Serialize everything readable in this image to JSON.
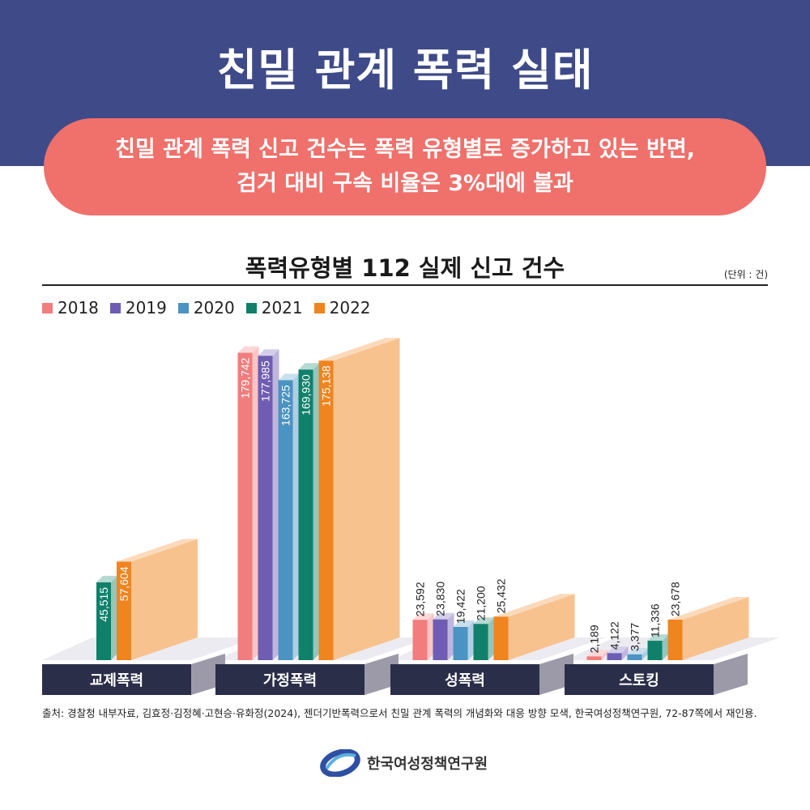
{
  "header": {
    "title": "친밀 관계 폭력 실태",
    "subtitle_line1": "친밀 관계 폭력 신고 건수는 폭력 유형별로 증가하고 있는 반면,",
    "subtitle_line2": "검거 대비 구속 비율은 3%대에 불과"
  },
  "colors": {
    "header_bg": "#3f4a88",
    "pill_bg": "#f0706b",
    "category_label_bg": "#2b2e48"
  },
  "chart_data": {
    "type": "bar",
    "title": "폭력유형별 112 실제 신고 건수",
    "unit_label": "(단위 : 건)",
    "categories": [
      "교제폭력",
      "가정폭력",
      "성폭력",
      "스토킹"
    ],
    "ylim": [
      0,
      180000
    ],
    "legend_position": "top-left",
    "series": [
      {
        "name": "2018",
        "color": "#f27d7d",
        "values": [
          null,
          179742,
          23592,
          2189
        ],
        "labels": [
          null,
          "179,742",
          "23,592",
          "2,189"
        ]
      },
      {
        "name": "2019",
        "color": "#6f5db3",
        "values": [
          null,
          177985,
          23830,
          4122
        ],
        "labels": [
          null,
          "177,985",
          "23,830",
          "4,122"
        ]
      },
      {
        "name": "2020",
        "color": "#4b93c2",
        "values": [
          null,
          163725,
          19422,
          3377
        ],
        "labels": [
          null,
          "163,725",
          "19,422",
          "3,377"
        ]
      },
      {
        "name": "2021",
        "color": "#10806b",
        "values": [
          45515,
          169930,
          21200,
          11336
        ],
        "labels": [
          "45,515",
          "169,930",
          "21,200",
          "11,336"
        ]
      },
      {
        "name": "2022",
        "color": "#f0841f",
        "values": [
          57604,
          175138,
          25432,
          23678
        ],
        "labels": [
          "57,604",
          "175,138",
          "25,432",
          "23,678"
        ]
      }
    ]
  },
  "footer": {
    "source": "출처: 경찰청 내부자료, 김효정·김정혜·고현승·유화정(2024), 젠더기반폭력으로서 친밀 관계 폭력의 개념화와 대응 방향 모색, 한국여성정책연구원, 72-87쪽에서 재인용.",
    "logo_icon": "kwdi-swirl-logo",
    "org_name": "한국여성정책연구원"
  }
}
